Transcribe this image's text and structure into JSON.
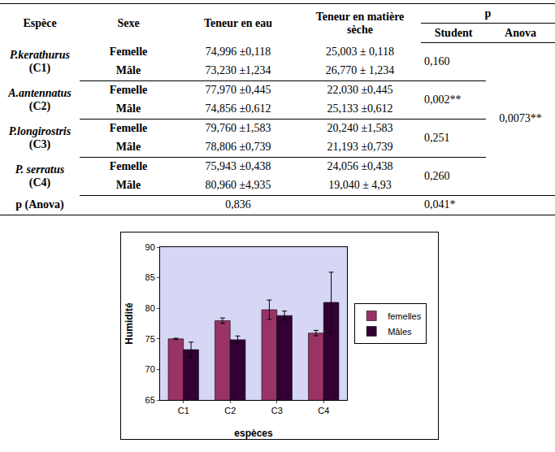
{
  "table": {
    "header": [
      "Espèce",
      "Sexe",
      "Teneur en eau",
      "Teneur en matière sèche",
      "p"
    ],
    "subheader": [
      "Student",
      "Anova"
    ],
    "groups": [
      {
        "species": "P.kerathurus",
        "code": "(C1)",
        "student": "0,160",
        "rows": [
          {
            "sex": "Femelle",
            "water": "74,996 ±0,118",
            "dry": "25,003 ± 0,118"
          },
          {
            "sex": "Mâle",
            "water": "73,230 ±1,234",
            "dry": "26,770 ± 1,234"
          }
        ]
      },
      {
        "species": "A.antennatus",
        "code": "(C2)",
        "student": "0,002**",
        "rows": [
          {
            "sex": "Femelle",
            "water": "77,970 ±0,445",
            "dry": "22,030 ±0,445"
          },
          {
            "sex": "Mâle",
            "water": "74,856 ±0,612",
            "dry": "25,133 ±0,612"
          }
        ]
      },
      {
        "species": "P.longirostris",
        "code": "(C3)",
        "student": "0,251",
        "rows": [
          {
            "sex": "Femelle",
            "water": "79,760 ±1,583",
            "dry": "20,240 ±1,583"
          },
          {
            "sex": "Mâle",
            "water": "78,806 ±0,739",
            "dry": "21,193 ±0,739"
          }
        ]
      },
      {
        "species": "P. serratus",
        "code": "(C4)",
        "student": "0,260",
        "rows": [
          {
            "sex": "Femelle",
            "water": "75,943 ±0,438",
            "dry": "24,056 ±0,438"
          },
          {
            "sex": "Mâle",
            "water": "80,960 ±4,935",
            "dry": "19,040 ± 4,93"
          }
        ]
      }
    ],
    "anova": "0,0073**",
    "footer": {
      "label": "p (Anova)",
      "water": "0,836",
      "p": "0,041*"
    }
  },
  "chart_data": {
    "type": "bar",
    "categories": [
      "C1",
      "C2",
      "C3",
      "C4"
    ],
    "series": [
      {
        "name": "femelles",
        "color": "#993366",
        "values": [
          74.996,
          77.97,
          79.76,
          75.943
        ],
        "error": [
          0.118,
          0.445,
          1.583,
          0.438
        ]
      },
      {
        "name": "Mâles",
        "color": "#330033",
        "values": [
          73.23,
          74.856,
          78.806,
          80.96
        ],
        "error": [
          1.234,
          0.612,
          0.739,
          4.935
        ]
      }
    ],
    "x_label": "espèces",
    "y_label": "Humidité",
    "ylim": [
      65,
      90
    ],
    "yticks": [
      65,
      70,
      75,
      80,
      85,
      90
    ],
    "grid": false,
    "legend": "right"
  }
}
